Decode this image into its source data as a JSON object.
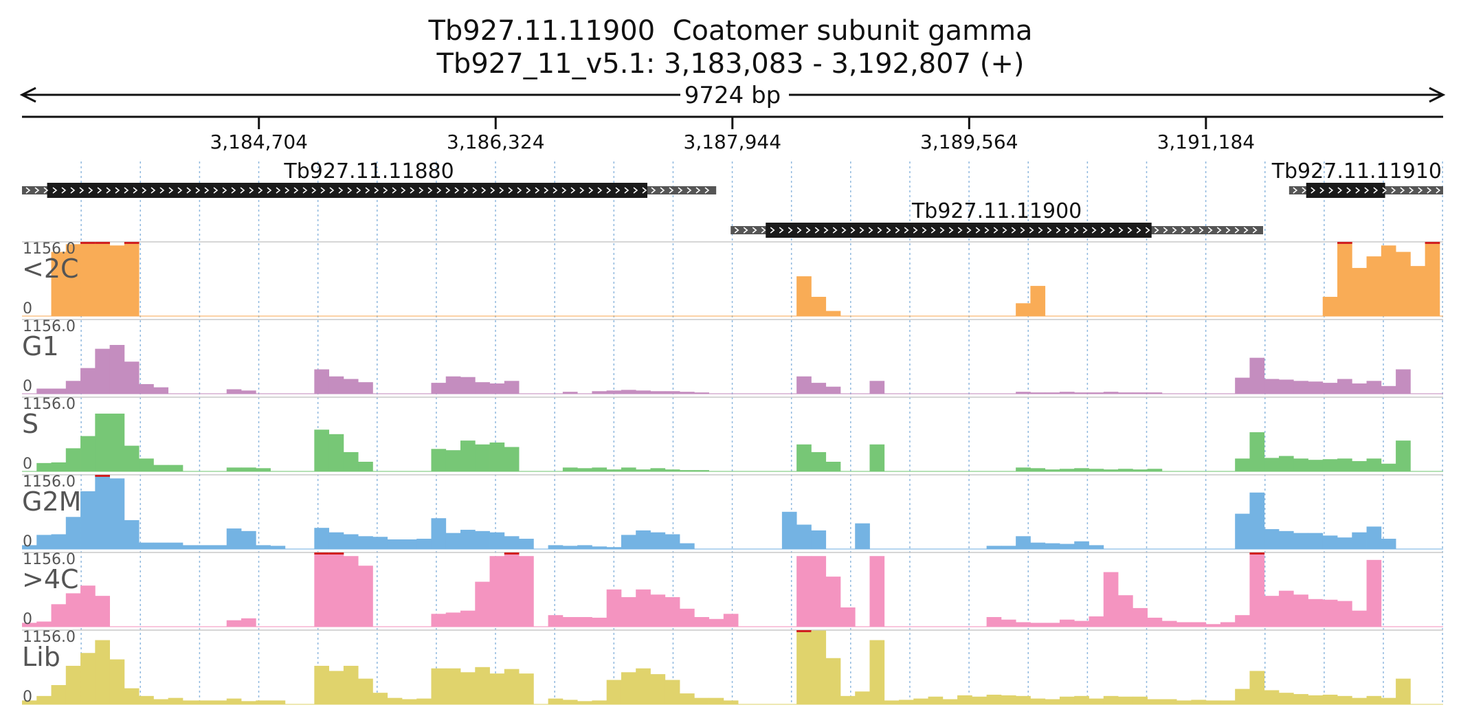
{
  "title_line1": "Tb927.11.11900  Coatomer subunit gamma",
  "title_line2": "Tb927_11_v5.1: 3,183,083 - 3,192,807 (+)",
  "chart_data": {
    "type": "area",
    "region": {
      "chrom": "Tb927_11_v5.1",
      "start": 3183083,
      "end": 3192807,
      "strand": "+",
      "length_label": "9724 bp"
    },
    "x_ticks": [
      {
        "pos": 3184704,
        "label": "3,184,704"
      },
      {
        "pos": 3186324,
        "label": "3,186,324"
      },
      {
        "pos": 3187944,
        "label": "3,187,944"
      },
      {
        "pos": 3189564,
        "label": "3,189,564"
      },
      {
        "pos": 3191184,
        "label": "3,191,184"
      }
    ],
    "genes": [
      {
        "name": "Tb927.11.11880",
        "row": 0,
        "start": 3183083,
        "end": 3187833,
        "cds_start": 3183255,
        "cds_end": 3187362
      },
      {
        "name": "Tb927.11.11900",
        "row": 1,
        "start": 3187932,
        "end": 3191575,
        "cds_start": 3188172,
        "cds_end": 3190812
      },
      {
        "name": "Tb927.11.11910",
        "row": 0,
        "start": 3191753,
        "end": 3192807,
        "cds_start": 3191870,
        "cds_end": 3192410
      }
    ],
    "ylim": [
      0,
      1156.0
    ],
    "ymax_label": "1156.0",
    "ymin_label": "0",
    "bin_size": 100,
    "bin_starts": [
      3183083,
      3183183,
      3183283,
      3183383,
      3183483,
      3183583,
      3183683,
      3183783,
      3183883,
      3183983,
      3184083,
      3184183,
      3184283,
      3184383,
      3184483,
      3184583,
      3184683,
      3184783,
      3184883,
      3184983,
      3185083,
      3185183,
      3185283,
      3185383,
      3185483,
      3185583,
      3185683,
      3185783,
      3185883,
      3185983,
      3186083,
      3186183,
      3186283,
      3186383,
      3186483,
      3186583,
      3186683,
      3186783,
      3186883,
      3186983,
      3187083,
      3187183,
      3187283,
      3187383,
      3187483,
      3187583,
      3187683,
      3187783,
      3187883,
      3187983,
      3188083,
      3188183,
      3188283,
      3188383,
      3188483,
      3188583,
      3188683,
      3188783,
      3188883,
      3188983,
      3189083,
      3189183,
      3189283,
      3189383,
      3189483,
      3189583,
      3189683,
      3189783,
      3189883,
      3189983,
      3190083,
      3190183,
      3190283,
      3190383,
      3190483,
      3190583,
      3190683,
      3190783,
      3190883,
      3190983,
      3191083,
      3191183,
      3191283,
      3191383,
      3191483,
      3191583,
      3191683,
      3191783,
      3191883,
      3191983,
      3192083,
      3192183,
      3192283,
      3192383,
      3192483,
      3192583,
      3192683,
      3192783
    ],
    "series": [
      {
        "name": "<2C",
        "color": "#f9ac56",
        "values": [
          0,
          0,
          1000,
          1120,
          1156,
          1156,
          1100,
          1156,
          0,
          0,
          0,
          0,
          0,
          0,
          0,
          0,
          0,
          0,
          0,
          0,
          0,
          0,
          0,
          0,
          0,
          0,
          0,
          0,
          0,
          0,
          0,
          0,
          0,
          0,
          0,
          0,
          0,
          0,
          0,
          0,
          0,
          0,
          0,
          0,
          0,
          0,
          0,
          0,
          0,
          0,
          0,
          0,
          0,
          620,
          300,
          80,
          0,
          0,
          0,
          0,
          0,
          0,
          0,
          0,
          0,
          0,
          0,
          0,
          200,
          470,
          0,
          0,
          0,
          0,
          0,
          0,
          0,
          0,
          0,
          0,
          0,
          0,
          0,
          0,
          0,
          0,
          0,
          0,
          0,
          300,
          1156,
          750,
          930,
          1100,
          1000,
          780,
          1156,
          0,
          0,
          0
        ]
      },
      {
        "name": "G1",
        "color": "#c48dbf",
        "values": [
          0,
          80,
          80,
          200,
          400,
          700,
          760,
          500,
          150,
          100,
          0,
          0,
          0,
          0,
          70,
          50,
          0,
          0,
          0,
          0,
          380,
          270,
          230,
          180,
          0,
          0,
          0,
          0,
          170,
          270,
          260,
          180,
          160,
          200,
          0,
          0,
          0,
          30,
          0,
          40,
          50,
          60,
          50,
          40,
          40,
          30,
          20,
          0,
          0,
          0,
          0,
          0,
          0,
          270,
          170,
          110,
          0,
          0,
          200,
          0,
          0,
          0,
          0,
          0,
          0,
          0,
          0,
          0,
          30,
          20,
          20,
          30,
          20,
          20,
          30,
          20,
          20,
          20,
          0,
          0,
          0,
          0,
          0,
          250,
          560,
          230,
          220,
          200,
          190,
          170,
          230,
          160,
          200,
          120,
          380,
          0,
          0,
          0
        ]
      },
      {
        "name": "S",
        "color": "#77c776",
        "values": [
          0,
          130,
          140,
          360,
          550,
          900,
          900,
          400,
          200,
          100,
          100,
          0,
          0,
          0,
          60,
          60,
          50,
          0,
          0,
          0,
          650,
          580,
          300,
          150,
          0,
          0,
          0,
          0,
          350,
          330,
          480,
          420,
          450,
          380,
          0,
          0,
          0,
          60,
          50,
          60,
          30,
          60,
          30,
          50,
          30,
          20,
          20,
          0,
          0,
          0,
          0,
          0,
          0,
          420,
          300,
          150,
          0,
          0,
          420,
          0,
          0,
          0,
          0,
          0,
          0,
          0,
          0,
          0,
          60,
          50,
          30,
          40,
          50,
          40,
          30,
          40,
          30,
          40,
          0,
          0,
          0,
          0,
          0,
          200,
          610,
          210,
          240,
          200,
          180,
          190,
          200,
          160,
          200,
          120,
          480,
          0,
          0,
          0
        ]
      },
      {
        "name": "G2M",
        "color": "#74b3e3",
        "values": [
          60,
          220,
          230,
          500,
          900,
          1156,
          1100,
          450,
          100,
          100,
          100,
          60,
          60,
          60,
          320,
          280,
          60,
          50,
          0,
          0,
          330,
          260,
          230,
          200,
          190,
          150,
          150,
          160,
          480,
          250,
          300,
          280,
          260,
          200,
          160,
          0,
          60,
          50,
          60,
          40,
          30,
          220,
          290,
          260,
          230,
          90,
          0,
          0,
          0,
          0,
          0,
          0,
          580,
          380,
          290,
          0,
          0,
          400,
          0,
          0,
          0,
          0,
          0,
          0,
          0,
          0,
          50,
          50,
          200,
          100,
          90,
          80,
          120,
          60,
          0,
          0,
          0,
          0,
          0,
          0,
          0,
          0,
          0,
          550,
          880,
          310,
          280,
          250,
          250,
          210,
          180,
          260,
          350,
          160,
          0,
          0,
          0,
          0
        ]
      },
      {
        "name": ">4C",
        "color": "#f494c0",
        "values": [
          60,
          80,
          350,
          520,
          640,
          480,
          0,
          0,
          0,
          0,
          0,
          0,
          0,
          0,
          100,
          130,
          0,
          0,
          0,
          0,
          1156,
          1156,
          1100,
          950,
          0,
          0,
          0,
          0,
          200,
          220,
          250,
          700,
          1100,
          1156,
          1100,
          0,
          180,
          150,
          150,
          140,
          580,
          460,
          580,
          500,
          460,
          280,
          150,
          120,
          200,
          0,
          0,
          0,
          0,
          1100,
          1100,
          780,
          300,
          0,
          1100,
          0,
          0,
          0,
          0,
          0,
          0,
          0,
          150,
          110,
          70,
          60,
          60,
          110,
          90,
          160,
          850,
          490,
          290,
          140,
          90,
          70,
          70,
          40,
          70,
          180,
          1156,
          480,
          560,
          500,
          430,
          420,
          400,
          250,
          1040,
          0,
          0,
          0
        ]
      },
      {
        "name": "Lib",
        "color": "#e0d36c",
        "values": [
          60,
          130,
          300,
          600,
          800,
          1000,
          700,
          250,
          130,
          80,
          100,
          60,
          60,
          60,
          90,
          50,
          60,
          60,
          0,
          0,
          600,
          520,
          600,
          400,
          180,
          100,
          80,
          90,
          560,
          560,
          500,
          580,
          480,
          550,
          480,
          0,
          90,
          70,
          50,
          60,
          380,
          500,
          560,
          470,
          380,
          170,
          100,
          100,
          60,
          0,
          0,
          0,
          0,
          1156,
          1150,
          720,
          130,
          200,
          1000,
          60,
          70,
          90,
          120,
          80,
          140,
          120,
          150,
          140,
          130,
          90,
          80,
          120,
          130,
          90,
          130,
          120,
          120,
          80,
          80,
          60,
          70,
          60,
          60,
          240,
          520,
          220,
          180,
          160,
          140,
          150,
          130,
          100,
          130,
          100,
          400,
          0,
          0,
          0
        ]
      }
    ]
  }
}
